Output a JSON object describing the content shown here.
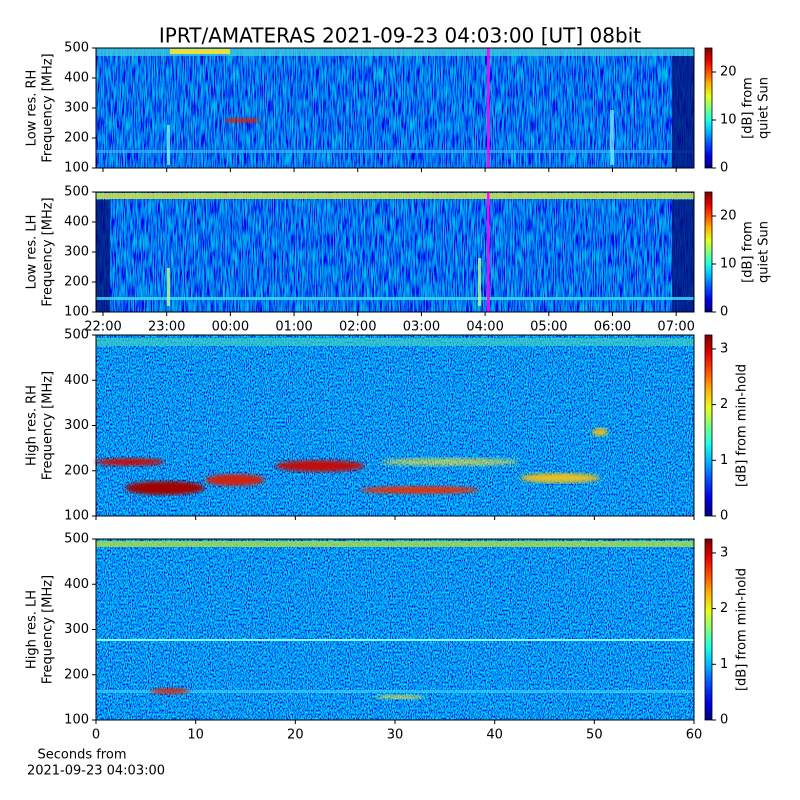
{
  "title": "IPRT/AMATERAS 2021-09-23 04:03:00 [UT]   08bit",
  "chart_data": [
    {
      "type": "heatmap",
      "ylabel": [
        "Low res. RH",
        "Frequency [MHz]"
      ],
      "ylim": [
        100,
        500
      ],
      "yticks": [
        100,
        200,
        300,
        400,
        500
      ],
      "xlim": [
        21.89,
        31.28
      ],
      "xticks": [
        {
          "value": 22,
          "label": "22:00"
        },
        {
          "value": 23,
          "label": "23:00"
        },
        {
          "value": 24,
          "label": "00:00"
        },
        {
          "value": 25,
          "label": "01:00"
        },
        {
          "value": 26,
          "label": "02:00"
        },
        {
          "value": 27,
          "label": "03:00"
        },
        {
          "value": 28,
          "label": "04:00"
        },
        {
          "value": 29,
          "label": "05:00"
        },
        {
          "value": 30,
          "label": "06:00"
        },
        {
          "value": 31,
          "label": "07:00"
        }
      ],
      "show_xtick_labels": false,
      "marker_x": 28.05,
      "marker_color": "#ff00ff",
      "colormap": "jet",
      "colorbar": {
        "label": [
          "[dB] from",
          "quiet Sun"
        ],
        "lim": [
          0,
          25
        ],
        "ticks": [
          0,
          10,
          20
        ]
      }
    },
    {
      "type": "heatmap",
      "ylabel": [
        "Low res. LH",
        "Frequency [MHz]"
      ],
      "ylim": [
        100,
        500
      ],
      "yticks": [
        100,
        200,
        300,
        400,
        500
      ],
      "xlim": [
        21.89,
        31.28
      ],
      "xticks": [
        {
          "value": 22,
          "label": "22:00"
        },
        {
          "value": 23,
          "label": "23:00"
        },
        {
          "value": 24,
          "label": "00:00"
        },
        {
          "value": 25,
          "label": "01:00"
        },
        {
          "value": 26,
          "label": "02:00"
        },
        {
          "value": 27,
          "label": "03:00"
        },
        {
          "value": 28,
          "label": "04:00"
        },
        {
          "value": 29,
          "label": "05:00"
        },
        {
          "value": 30,
          "label": "06:00"
        },
        {
          "value": 31,
          "label": "07:00"
        }
      ],
      "show_xtick_labels": true,
      "marker_x": 28.05,
      "marker_color": "#ff00ff",
      "colormap": "jet",
      "colorbar": {
        "label": [
          "[dB] from",
          "quiet Sun"
        ],
        "lim": [
          0,
          25
        ],
        "ticks": [
          0,
          10,
          20
        ]
      }
    },
    {
      "type": "heatmap",
      "ylabel": [
        "High res. RH",
        "Frequency [MHz]"
      ],
      "ylim": [
        100,
        500
      ],
      "yticks": [
        100,
        200,
        300,
        400,
        500
      ],
      "xlim": [
        0,
        60
      ],
      "xticks": [
        0,
        10,
        20,
        30,
        40,
        50,
        60
      ],
      "show_xtick_labels": false,
      "colormap": "jet",
      "colorbar": {
        "label": [
          "[dB] from min-hold"
        ],
        "lim": [
          0,
          3.25
        ],
        "ticks": [
          0,
          1,
          2,
          3
        ]
      }
    },
    {
      "type": "heatmap",
      "ylabel": [
        "High res. LH",
        "Frequency [MHz]"
      ],
      "ylim": [
        100,
        500
      ],
      "yticks": [
        100,
        200,
        300,
        400,
        500
      ],
      "xlim": [
        0,
        60
      ],
      "xticks": [
        0,
        10,
        20,
        30,
        40,
        50,
        60
      ],
      "show_xtick_labels": true,
      "xlabel": [
        "Seconds from",
        "2021-09-23 04:03:00"
      ],
      "colormap": "jet",
      "colorbar": {
        "label": [
          "[dB] from min-hold"
        ],
        "lim": [
          0,
          3.25
        ],
        "ticks": [
          0,
          1,
          2,
          3
        ]
      }
    }
  ]
}
